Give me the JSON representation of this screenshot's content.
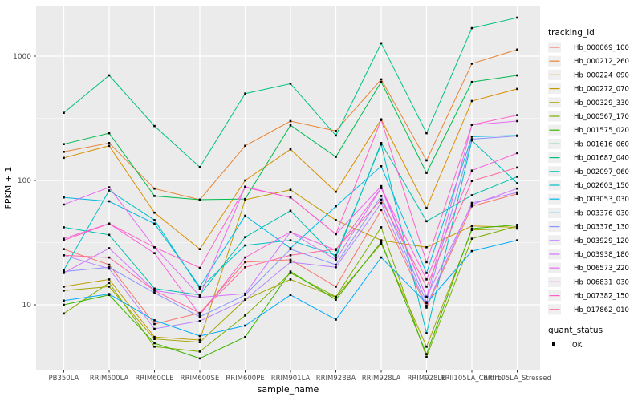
{
  "figure": {
    "y_tick_labels": [
      "10",
      "100",
      "1000"
    ],
    "panel_bg": "#EBEBEB",
    "grid_color": "#FFFFFF",
    "key_bg": "#EFEFEF",
    "point_color": "#000000"
  },
  "chart_data": {
    "type": "line",
    "xlabel": "sample_name",
    "ylabel": "FPKM + 1",
    "y_scale": "log10",
    "ylim": [
      3,
      2500
    ],
    "y_major_ticks": [
      10,
      100,
      1000
    ],
    "y_minor_ticks": [
      3.162,
      31.62,
      316.2
    ],
    "grid": "on",
    "legend_position": "right",
    "categories": [
      "PB350LA",
      "RRIM600LA",
      "RRIM600LE",
      "RRIM600SE",
      "RRIM600PE",
      "RRIM901LA",
      "RRIM928BA",
      "RRIM928LA",
      "RRIM928LE",
      "RRII105LA_Control",
      "RRII105LA_Stressed"
    ],
    "series": [
      {
        "name": "Hb_000069_100",
        "color": "#F8766D",
        "values": [
          28,
          21,
          7,
          8.6,
          22,
          23,
          14,
          58,
          9.5,
          62,
          78
        ]
      },
      {
        "name": "Hb_000212_260",
        "color": "#EA8331",
        "values": [
          170,
          200,
          86,
          70,
          190,
          300,
          250,
          650,
          145,
          870,
          1130
        ]
      },
      {
        "name": "Hb_000224_090",
        "color": "#D89000",
        "values": [
          152,
          190,
          55,
          28,
          100,
          178,
          81,
          310,
          60,
          435,
          545
        ]
      },
      {
        "name": "Hb_000272_070",
        "color": "#C09B00",
        "values": [
          14,
          16,
          5.5,
          5.2,
          70,
          84,
          48,
          33,
          29,
          43,
          42
        ]
      },
      {
        "name": "Hb_000329_330",
        "color": "#A3A500",
        "values": [
          13,
          14,
          5.3,
          5,
          11,
          16,
          11.5,
          31,
          4.6,
          40,
          41
        ]
      },
      {
        "name": "Hb_000567_170",
        "color": "#7CAE00",
        "values": [
          8.5,
          15,
          4.6,
          4.2,
          8.2,
          18,
          11.6,
          42,
          3.8,
          34,
          43
        ]
      },
      {
        "name": "Hb_001575_020",
        "color": "#39B600",
        "values": [
          10,
          12,
          4.9,
          3.7,
          5.5,
          18.5,
          11,
          32,
          4,
          41,
          44
        ]
      },
      {
        "name": "Hb_001616_060",
        "color": "#00BB4E",
        "values": [
          196,
          240,
          75,
          70,
          71,
          278,
          155,
          620,
          115,
          620,
          700
        ]
      },
      {
        "name": "Hb_001687_040",
        "color": "#00C087",
        "values": [
          350,
          700,
          274,
          128,
          500,
          600,
          230,
          1270,
          240,
          1680,
          2040
        ]
      },
      {
        "name": "Hb_002097_060",
        "color": "#00C0AF",
        "values": [
          42,
          36.5,
          13.5,
          12,
          35,
          57,
          24,
          200,
          47,
          76,
          107
        ]
      },
      {
        "name": "Hb_002603_150",
        "color": "#00BFC4",
        "values": [
          19,
          83,
          48,
          13.5,
          30,
          33,
          25,
          195,
          5.9,
          210,
          95
        ]
      },
      {
        "name": "Hb_003053_030",
        "color": "#00B8E7",
        "values": [
          73,
          68,
          45,
          14,
          52,
          28.5,
          62,
          130,
          18,
          225,
          230
        ]
      },
      {
        "name": "Hb_003376_030",
        "color": "#00ACFC",
        "values": [
          10.8,
          12.2,
          7.5,
          5.6,
          6.8,
          12,
          7.6,
          24,
          10.3,
          27,
          33
        ]
      },
      {
        "name": "Hb_003376_130",
        "color": "#8B93FF",
        "values": [
          18.5,
          20,
          12.5,
          8,
          12,
          28,
          21,
          75,
          10.5,
          215,
          228
        ]
      },
      {
        "name": "Hb_003929_120",
        "color": "#B983FF",
        "values": [
          25,
          19.5,
          6.4,
          7.4,
          11,
          22,
          20,
          66,
          9.8,
          66,
          80
        ]
      },
      {
        "name": "Hb_003938_180",
        "color": "#D376FF",
        "values": [
          18,
          28.5,
          13,
          11.5,
          12.3,
          38.5,
          23,
          87,
          11.6,
          64,
          86
        ]
      },
      {
        "name": "Hb_006573_220",
        "color": "#E76BF3",
        "values": [
          64,
          88,
          29,
          11.8,
          89,
          73,
          37,
          90,
          11.5,
          280,
          300
        ]
      },
      {
        "name": "Hb_006831_030",
        "color": "#FA62DB",
        "values": [
          34,
          45,
          26,
          8.3,
          24,
          38.5,
          27.5,
          87,
          16,
          120,
          166
        ]
      },
      {
        "name": "Hb_007382_150",
        "color": "#FF61C9",
        "values": [
          33,
          45,
          29,
          19.8,
          88,
          73,
          37,
          307,
          22,
          280,
          335
        ]
      },
      {
        "name": "Hb_017862_010",
        "color": "#FF68A1",
        "values": [
          25,
          24,
          13,
          8.6,
          20,
          25,
          28,
          70,
          14,
          99,
          127
        ]
      }
    ],
    "legend": {
      "series_title": "tracking_id",
      "status_title": "quant_status",
      "status_items": [
        {
          "label": "OK"
        }
      ]
    }
  }
}
